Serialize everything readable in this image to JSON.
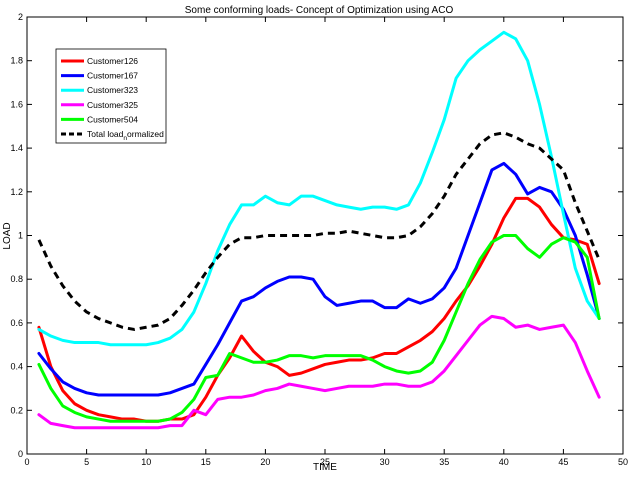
{
  "chart_data": {
    "type": "line",
    "title": "Some conforming loads- Concept of Optimization using ACO",
    "xlabel": "TIME",
    "ylabel": "LOAD",
    "xlim": [
      0,
      50
    ],
    "ylim": [
      0,
      2
    ],
    "xticks": [
      0,
      5,
      10,
      15,
      20,
      25,
      30,
      35,
      40,
      45,
      50
    ],
    "xtick_labels": [
      "0",
      "5",
      "10",
      "15",
      "20",
      "25",
      "30",
      "35",
      "40",
      "45",
      "50"
    ],
    "yticks": [
      0,
      0.2,
      0.4,
      0.6,
      0.8,
      1.0,
      1.2,
      1.4,
      1.6,
      1.8,
      2.0
    ],
    "ytick_labels": [
      "0",
      "0.2",
      "0.4",
      "0.6",
      "0.8",
      "1",
      "1.2",
      "1.4",
      "1.6",
      "1.8",
      "2"
    ],
    "grid": false,
    "legend_position": "top-left",
    "x": [
      1,
      2,
      3,
      4,
      5,
      6,
      7,
      8,
      9,
      10,
      11,
      12,
      13,
      14,
      15,
      16,
      17,
      18,
      19,
      20,
      21,
      22,
      23,
      24,
      25,
      26,
      27,
      28,
      29,
      30,
      31,
      32,
      33,
      34,
      35,
      36,
      37,
      38,
      39,
      40,
      41,
      42,
      43,
      44,
      45,
      46,
      47,
      48
    ],
    "series": [
      {
        "name": "Customer126",
        "color": "#ff0000",
        "dash": "solid",
        "values": [
          0.58,
          0.4,
          0.29,
          0.23,
          0.2,
          0.18,
          0.17,
          0.16,
          0.16,
          0.15,
          0.15,
          0.16,
          0.16,
          0.18,
          0.26,
          0.36,
          0.44,
          0.54,
          0.47,
          0.42,
          0.4,
          0.36,
          0.37,
          0.39,
          0.41,
          0.42,
          0.43,
          0.43,
          0.44,
          0.46,
          0.46,
          0.49,
          0.52,
          0.56,
          0.62,
          0.7,
          0.77,
          0.86,
          0.96,
          1.08,
          1.17,
          1.17,
          1.13,
          1.05,
          0.99,
          0.98,
          0.96,
          0.78
        ]
      },
      {
        "name": "Customer167",
        "color": "#0000ff",
        "dash": "solid",
        "values": [
          0.46,
          0.39,
          0.33,
          0.3,
          0.28,
          0.27,
          0.27,
          0.27,
          0.27,
          0.27,
          0.27,
          0.28,
          0.3,
          0.32,
          0.41,
          0.5,
          0.6,
          0.7,
          0.72,
          0.76,
          0.79,
          0.81,
          0.81,
          0.8,
          0.72,
          0.68,
          0.69,
          0.7,
          0.7,
          0.67,
          0.67,
          0.71,
          0.69,
          0.71,
          0.76,
          0.85,
          1.0,
          1.15,
          1.3,
          1.33,
          1.28,
          1.19,
          1.22,
          1.2,
          1.12,
          1.0,
          0.82,
          0.62
        ]
      },
      {
        "name": "Customer323",
        "color": "#00ffff",
        "dash": "solid",
        "values": [
          0.57,
          0.54,
          0.52,
          0.51,
          0.51,
          0.51,
          0.5,
          0.5,
          0.5,
          0.5,
          0.51,
          0.53,
          0.57,
          0.65,
          0.78,
          0.93,
          1.05,
          1.14,
          1.14,
          1.18,
          1.15,
          1.14,
          1.18,
          1.18,
          1.16,
          1.14,
          1.13,
          1.12,
          1.13,
          1.13,
          1.12,
          1.14,
          1.24,
          1.38,
          1.53,
          1.72,
          1.8,
          1.85,
          1.89,
          1.93,
          1.9,
          1.8,
          1.6,
          1.36,
          1.1,
          0.85,
          0.7,
          0.62
        ]
      },
      {
        "name": "Customer325",
        "color": "#ff00ff",
        "dash": "solid",
        "values": [
          0.18,
          0.14,
          0.13,
          0.12,
          0.12,
          0.12,
          0.12,
          0.12,
          0.12,
          0.12,
          0.12,
          0.13,
          0.13,
          0.2,
          0.18,
          0.25,
          0.26,
          0.26,
          0.27,
          0.29,
          0.3,
          0.32,
          0.31,
          0.3,
          0.29,
          0.3,
          0.31,
          0.31,
          0.31,
          0.32,
          0.32,
          0.31,
          0.31,
          0.33,
          0.38,
          0.45,
          0.52,
          0.59,
          0.63,
          0.62,
          0.58,
          0.59,
          0.57,
          0.58,
          0.59,
          0.51,
          0.38,
          0.26
        ]
      },
      {
        "name": "Customer504",
        "color": "#00ff00",
        "dash": "solid",
        "values": [
          0.41,
          0.3,
          0.22,
          0.19,
          0.17,
          0.16,
          0.15,
          0.15,
          0.15,
          0.15,
          0.15,
          0.16,
          0.19,
          0.25,
          0.35,
          0.36,
          0.46,
          0.44,
          0.42,
          0.42,
          0.43,
          0.45,
          0.45,
          0.44,
          0.45,
          0.45,
          0.45,
          0.45,
          0.43,
          0.4,
          0.38,
          0.37,
          0.38,
          0.42,
          0.52,
          0.65,
          0.78,
          0.89,
          0.97,
          1.0,
          1.0,
          0.94,
          0.9,
          0.96,
          0.99,
          0.97,
          0.9,
          0.62
        ]
      },
      {
        "name": "Total load_normalized",
        "label_main": "Total load",
        "label_sub": "n",
        "label_rest": "ormalized",
        "color": "#000000",
        "dash": "dashed",
        "values": [
          0.98,
          0.86,
          0.77,
          0.7,
          0.65,
          0.62,
          0.6,
          0.58,
          0.57,
          0.58,
          0.59,
          0.62,
          0.68,
          0.75,
          0.83,
          0.9,
          0.96,
          0.99,
          0.99,
          1.0,
          1.0,
          1.0,
          1.0,
          1.0,
          1.01,
          1.01,
          1.02,
          1.01,
          1.0,
          0.99,
          0.99,
          1.0,
          1.04,
          1.1,
          1.18,
          1.28,
          1.35,
          1.42,
          1.46,
          1.47,
          1.45,
          1.42,
          1.4,
          1.35,
          1.3,
          1.15,
          1.02,
          0.89
        ]
      }
    ]
  }
}
